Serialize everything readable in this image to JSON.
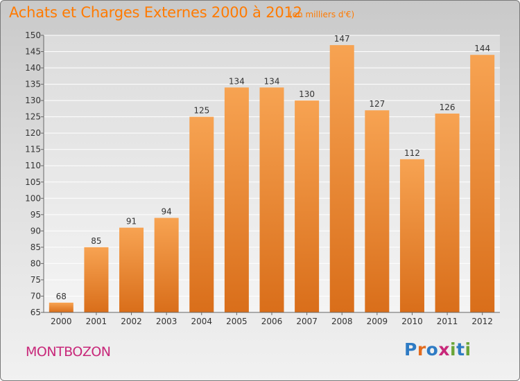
{
  "title": "Achats et Charges Externes 2000 à 2012",
  "unit_note": "(en milliers d'€)",
  "place": "MONTBOZON",
  "logo": {
    "text": "Proxiti",
    "colors": [
      "#2e7bc4",
      "#e36c1e",
      "#2e7bc4",
      "#c8287a",
      "#6aa538",
      "#2e7bc4",
      "#6aa538"
    ]
  },
  "colors": {
    "title": "#ff7a00",
    "bar_top": "#f7a352",
    "bar_bottom": "#d96e1a",
    "place": "#c8287a"
  },
  "chart_data": {
    "type": "bar",
    "title": "Achats et Charges Externes 2000 à 2012",
    "subtitle": "(en milliers d'€)",
    "xlabel": "",
    "ylabel": "",
    "categories": [
      "2000",
      "2001",
      "2002",
      "2003",
      "2004",
      "2005",
      "2006",
      "2007",
      "2008",
      "2009",
      "2010",
      "2011",
      "2012"
    ],
    "values": [
      68,
      85,
      91,
      94,
      125,
      134,
      134,
      130,
      147,
      127,
      112,
      126,
      144
    ],
    "ylim": [
      65,
      150
    ],
    "yticks": [
      65,
      70,
      75,
      80,
      85,
      90,
      95,
      100,
      105,
      110,
      115,
      120,
      125,
      130,
      135,
      140,
      145,
      150
    ],
    "grid": true,
    "data_labels": true
  }
}
